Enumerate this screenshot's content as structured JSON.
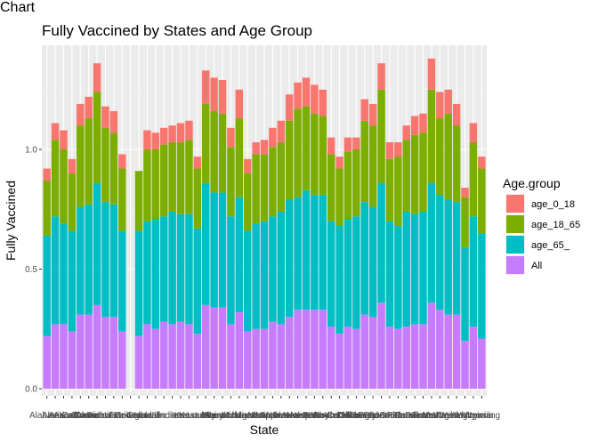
{
  "chart_data": {
    "type": "bar",
    "stacked": true,
    "title": "Fully Vaccined by States and Age Group",
    "xlabel": "State",
    "ylabel": "Fully Vaccined",
    "ylim": [
      0,
      1.37
    ],
    "yticks": [
      0.0,
      0.5,
      1.0
    ],
    "ytick_labels": [
      "0.0",
      "0.5",
      "1.0"
    ],
    "grid": true,
    "legend_position": "right",
    "legend_title": "Age.group",
    "x_tick_labels_overplotted": true,
    "categories": [
      "Alabama",
      "Alaska",
      "Arizona",
      "Arkansas",
      "California",
      "Colorado",
      "Connecticut",
      "Delaware",
      "District of Columbia",
      "Florida",
      "Georgia",
      "Guam",
      "Hawaii",
      "Idaho",
      "Illinois",
      "Indiana",
      "Iowa",
      "Kansas",
      "Kentucky",
      "Louisiana",
      "Maine",
      "Maryland",
      "Massachusetts",
      "Michigan",
      "Minnesota",
      "Mississippi",
      "Missouri",
      "Montana",
      "Nebraska",
      "Nevada",
      "New Hampshire",
      "New Jersey",
      "New Mexico",
      "New York",
      "North Carolina",
      "North Dakota",
      "Ohio",
      "Oklahoma",
      "Oregon",
      "Pennsylvania",
      "Puerto Rico",
      "Rhode Island",
      "South Carolina",
      "South Dakota",
      "Tennessee",
      "Texas",
      "Utah",
      "Vermont",
      "Virginia",
      "Washington",
      "West Virginia",
      "Wisconsin",
      "Wyoming"
    ],
    "visible_tick_text": [
      "Alabama",
      "Wyoming"
    ],
    "series": [
      {
        "name": "All",
        "color": "#C77CFF",
        "values": [
          0.22,
          0.27,
          0.27,
          0.24,
          0.31,
          0.31,
          0.35,
          0.3,
          0.3,
          0.24,
          0.0,
          0.22,
          0.27,
          0.25,
          0.28,
          0.27,
          0.28,
          0.27,
          0.23,
          0.35,
          0.34,
          0.34,
          0.27,
          0.32,
          0.24,
          0.25,
          0.25,
          0.28,
          0.27,
          0.3,
          0.33,
          0.33,
          0.33,
          0.33,
          0.26,
          0.23,
          0.26,
          0.25,
          0.31,
          0.3,
          0.36,
          0.26,
          0.25,
          0.26,
          0.27,
          0.27,
          0.36,
          0.33,
          0.31,
          0.31,
          0.2,
          0.26,
          0.21
        ]
      },
      {
        "name": "age_65_",
        "color": "#00BFC4",
        "values": [
          0.42,
          0.45,
          0.42,
          0.42,
          0.45,
          0.46,
          0.51,
          0.48,
          0.47,
          0.42,
          0.0,
          0.44,
          0.43,
          0.46,
          0.44,
          0.47,
          0.45,
          0.46,
          0.44,
          0.51,
          0.48,
          0.48,
          0.45,
          0.48,
          0.42,
          0.44,
          0.45,
          0.44,
          0.47,
          0.49,
          0.47,
          0.5,
          0.48,
          0.48,
          0.44,
          0.45,
          0.45,
          0.47,
          0.47,
          0.46,
          0.5,
          0.44,
          0.43,
          0.48,
          0.46,
          0.47,
          0.5,
          0.48,
          0.48,
          0.47,
          0.39,
          0.46,
          0.44
        ]
      },
      {
        "name": "age_18_65",
        "color": "#7CAE00",
        "values": [
          0.23,
          0.32,
          0.31,
          0.24,
          0.34,
          0.36,
          0.38,
          0.31,
          0.3,
          0.26,
          0.0,
          0.25,
          0.3,
          0.29,
          0.3,
          0.29,
          0.3,
          0.31,
          0.25,
          0.33,
          0.34,
          0.33,
          0.29,
          0.33,
          0.24,
          0.29,
          0.28,
          0.29,
          0.29,
          0.33,
          0.37,
          0.35,
          0.34,
          0.33,
          0.28,
          0.24,
          0.28,
          0.28,
          0.34,
          0.34,
          0.39,
          0.26,
          0.29,
          0.3,
          0.33,
          0.33,
          0.39,
          0.32,
          0.36,
          0.32,
          0.21,
          0.31,
          0.27
        ]
      },
      {
        "name": "age_0_18",
        "color": "#F8766D",
        "values": [
          0.05,
          0.07,
          0.08,
          0.06,
          0.09,
          0.09,
          0.12,
          0.09,
          0.09,
          0.06,
          0.0,
          0.0,
          0.08,
          0.07,
          0.07,
          0.07,
          0.08,
          0.08,
          0.05,
          0.14,
          0.14,
          0.14,
          0.08,
          0.12,
          0.06,
          0.05,
          0.06,
          0.08,
          0.09,
          0.11,
          0.11,
          0.12,
          0.12,
          0.11,
          0.07,
          0.05,
          0.06,
          0.05,
          0.09,
          0.09,
          0.11,
          0.07,
          0.06,
          0.06,
          0.08,
          0.08,
          0.13,
          0.11,
          0.1,
          0.09,
          0.04,
          0.08,
          0.05
        ]
      }
    ]
  }
}
